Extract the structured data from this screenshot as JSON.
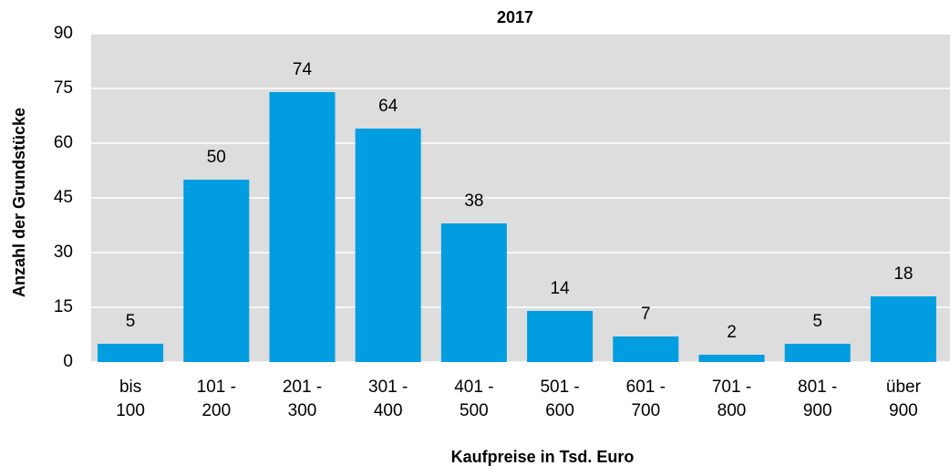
{
  "chart_data": {
    "type": "bar",
    "title": "2017",
    "x_label": "Kaufpreise in Tsd. Euro",
    "y_label": "Anzahl der Grundstücke",
    "categories": [
      "bis 100",
      "101 - 200",
      "201 - 300",
      "301 - 400",
      "401 - 500",
      "501 - 600",
      "601 - 700",
      "701 - 800",
      "801 - 900",
      "über 900"
    ],
    "values": [
      5,
      50,
      74,
      64,
      38,
      14,
      7,
      2,
      5,
      18
    ],
    "color": "#009de0",
    "ylim": [
      0,
      90
    ],
    "yticks": [
      0,
      15,
      30,
      45,
      60,
      75,
      90
    ],
    "grid": true
  }
}
